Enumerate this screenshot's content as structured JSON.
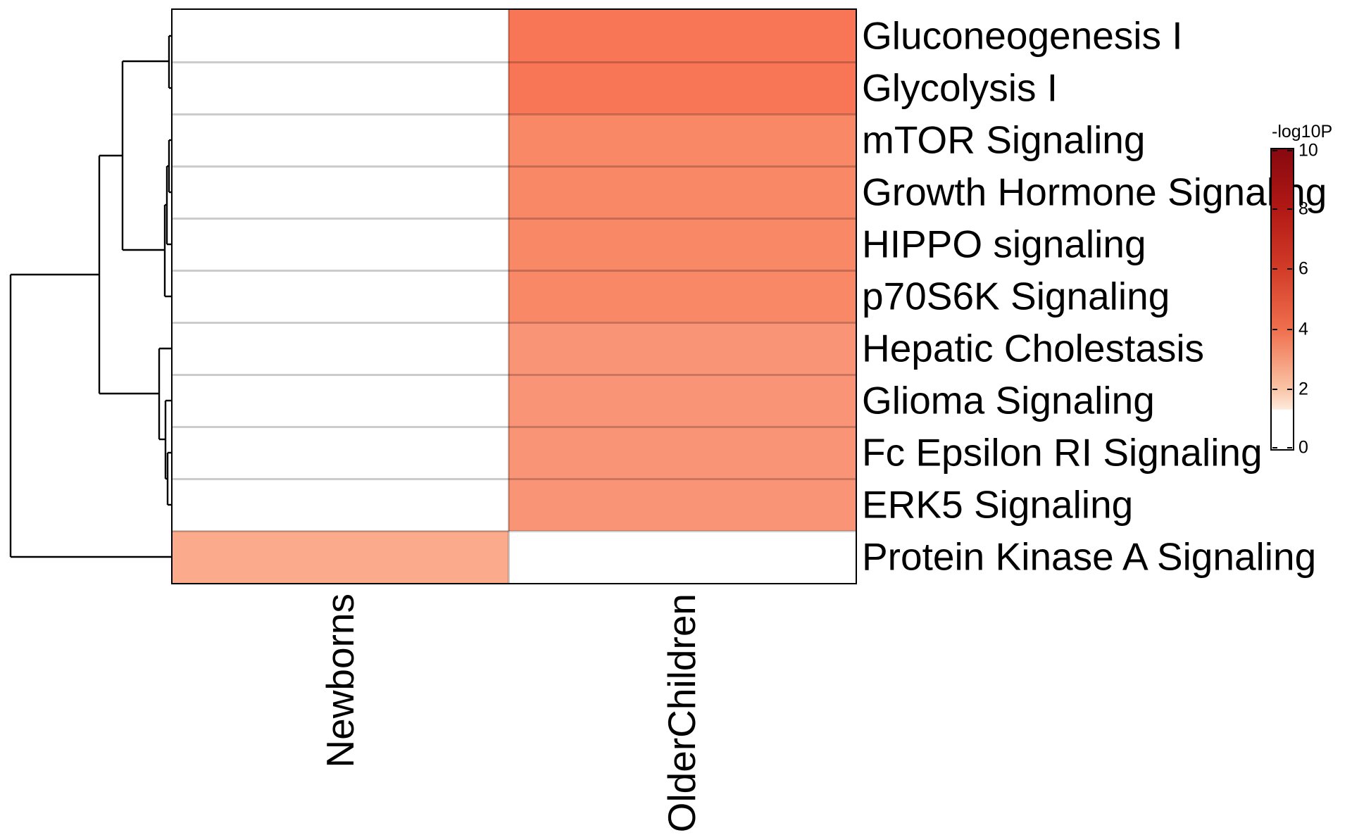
{
  "chart_data": {
    "type": "heatmap",
    "title": "",
    "legend_title": "-log10P",
    "columns": [
      "Newborns",
      "OlderChildren"
    ],
    "rows": [
      "Gluconeogenesis I",
      "Glycolysis I",
      "mTOR Signaling",
      "Growth Hormone Signaling",
      "HIPPO signaling",
      "p70S6K Signaling",
      "Hepatic Cholestasis",
      "Glioma Signaling",
      "Fc Epsilon RI Signaling",
      "ERK5 Signaling",
      "Protein Kinase A Signaling"
    ],
    "values_unit": "-log10P",
    "values_note": "estimated from colorbar; cells below ~1.3 render white and are listed as 0",
    "values": [
      [
        0,
        3.7
      ],
      [
        0,
        3.7
      ],
      [
        0,
        3.2
      ],
      [
        0,
        3.2
      ],
      [
        0,
        3.2
      ],
      [
        0,
        3.2
      ],
      [
        0,
        2.8
      ],
      [
        0,
        2.8
      ],
      [
        0,
        2.8
      ],
      [
        0,
        2.8
      ],
      [
        2.3,
        0
      ]
    ],
    "cell_colors": [
      [
        "#ffffff",
        "#f87655"
      ],
      [
        "#ffffff",
        "#f87655"
      ],
      [
        "#ffffff",
        "#f98867"
      ],
      [
        "#ffffff",
        "#f98867"
      ],
      [
        "#ffffff",
        "#f98867"
      ],
      [
        "#ffffff",
        "#f98867"
      ],
      [
        "#ffffff",
        "#fa9476"
      ],
      [
        "#ffffff",
        "#fa9476"
      ],
      [
        "#ffffff",
        "#fa9476"
      ],
      [
        "#ffffff",
        "#fa9476"
      ],
      [
        "#fbab8b",
        "#ffffff"
      ]
    ],
    "grid_line_color": "rgba(0,0,0,0.2)",
    "dendrogram_color": "#000000",
    "colorbar": {
      "min": 0,
      "max": 10,
      "ticks": [
        10,
        8,
        6,
        4,
        2,
        0
      ],
      "white_below": 1.3,
      "gradient_stops": [
        {
          "pos": 0,
          "color": "#87090f"
        },
        {
          "pos": 20,
          "color": "#b21915"
        },
        {
          "pos": 40,
          "color": "#d23c28"
        },
        {
          "pos": 60,
          "color": "#ef6f4d"
        },
        {
          "pos": 80,
          "color": "#fac5a7"
        },
        {
          "pos": 86.5,
          "color": "#fde8da"
        },
        {
          "pos": 87,
          "color": "#ffffff"
        },
        {
          "pos": 100,
          "color": "#ffffff"
        }
      ]
    },
    "row_dendrogram_segments": [
      [
        15,
        390,
        15,
        791
      ],
      [
        15,
        390,
        141,
        390
      ],
      [
        15,
        791,
        245,
        791
      ],
      [
        141,
        221,
        141,
        559
      ],
      [
        141,
        221,
        174,
        221
      ],
      [
        141,
        559,
        226,
        559
      ],
      [
        174,
        87,
        174,
        355
      ],
      [
        174,
        87,
        240,
        87
      ],
      [
        174,
        355,
        234,
        355
      ],
      [
        240,
        51,
        240,
        125
      ],
      [
        240,
        51,
        245,
        51
      ],
      [
        240,
        125,
        245,
        125
      ],
      [
        234,
        291,
        234,
        421
      ],
      [
        234,
        291,
        237,
        291
      ],
      [
        234,
        421,
        245,
        421
      ],
      [
        237,
        236,
        237,
        347
      ],
      [
        237,
        236,
        240,
        236
      ],
      [
        237,
        347,
        245,
        347
      ],
      [
        240,
        199,
        240,
        273
      ],
      [
        240,
        199,
        245,
        199
      ],
      [
        240,
        273,
        245,
        273
      ],
      [
        226,
        495,
        226,
        624
      ],
      [
        226,
        495,
        245,
        495
      ],
      [
        226,
        624,
        235,
        624
      ],
      [
        235,
        569,
        235,
        680
      ],
      [
        235,
        569,
        245,
        569
      ],
      [
        235,
        680,
        238,
        680
      ],
      [
        238,
        643,
        238,
        717
      ],
      [
        238,
        643,
        245,
        643
      ],
      [
        238,
        717,
        245,
        717
      ]
    ]
  }
}
